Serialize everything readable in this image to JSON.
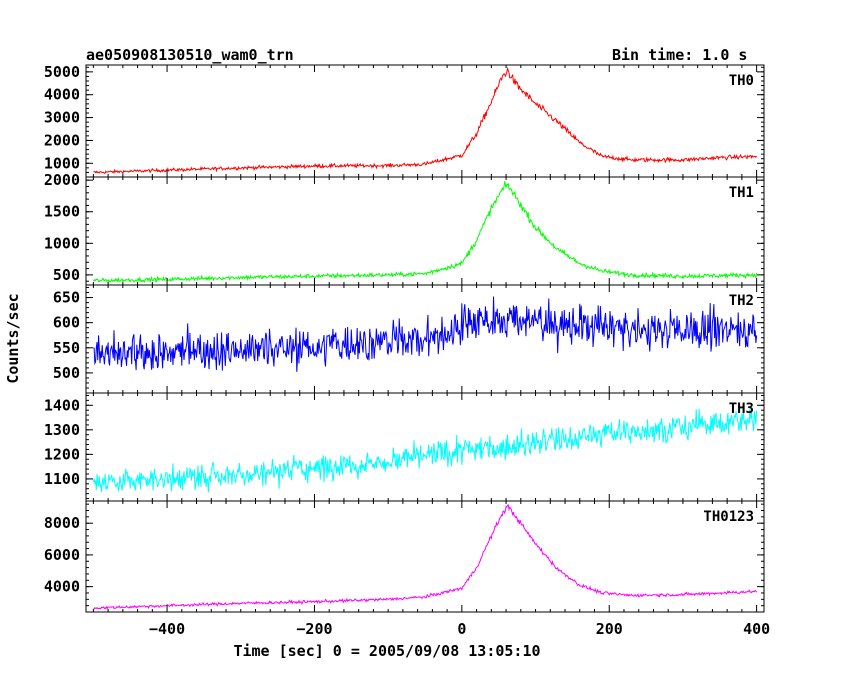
{
  "header": {
    "title": "ae050908130510_wam0_trn",
    "bin_time": "Bin time: 1.0 s"
  },
  "chart_data": {
    "type": "line",
    "xlabel": "Time [sec] 0 = 2005/09/08 13:05:10",
    "ylabel": "Counts/sec",
    "xlim": [
      -510,
      410
    ],
    "x_ticks": [
      -400,
      -200,
      0,
      200,
      400
    ],
    "grid": false,
    "panels": [
      {
        "name": "TH0",
        "color": "#ff0000",
        "ylim": [
          400,
          5300
        ],
        "y_ticks": [
          1000,
          2000,
          3000,
          4000,
          5000
        ],
        "x": [
          -500,
          -400,
          -300,
          -200,
          -100,
          -50,
          0,
          20,
          40,
          55,
          62,
          75,
          100,
          130,
          160,
          190,
          230,
          300,
          350,
          400
        ],
        "values": [
          600,
          700,
          800,
          880,
          900,
          960,
          1350,
          2300,
          3700,
          4800,
          5050,
          4400,
          3600,
          2800,
          1900,
          1300,
          1150,
          1150,
          1250,
          1300
        ],
        "noise": 45
      },
      {
        "name": "TH1",
        "color": "#00ff00",
        "ylim": [
          340,
          2050
        ],
        "y_ticks": [
          500,
          1000,
          1500,
          2000
        ],
        "x": [
          -500,
          -400,
          -300,
          -200,
          -100,
          -50,
          0,
          20,
          40,
          55,
          62,
          75,
          100,
          130,
          160,
          190,
          230,
          300,
          350,
          400
        ],
        "values": [
          410,
          430,
          460,
          480,
          500,
          520,
          680,
          1050,
          1550,
          1850,
          1930,
          1700,
          1250,
          900,
          680,
          560,
          500,
          480,
          490,
          500
        ],
        "noise": 22
      },
      {
        "name": "TH2",
        "color": "#0000ff",
        "ylim": [
          460,
          675
        ],
        "y_ticks": [
          500,
          550,
          600,
          650
        ],
        "x": [
          -500,
          -300,
          -200,
          -100,
          -25,
          0,
          50,
          150,
          250,
          400
        ],
        "values": [
          535,
          548,
          552,
          565,
          572,
          600,
          610,
          595,
          585,
          588
        ],
        "noise": 28
      },
      {
        "name": "TH3",
        "color": "#00ffff",
        "ylim": [
          1010,
          1450
        ],
        "y_ticks": [
          1100,
          1200,
          1300,
          1400
        ],
        "x": [
          -500,
          -300,
          -100,
          0,
          100,
          200,
          300,
          400
        ],
        "values": [
          1085,
          1120,
          1170,
          1215,
          1250,
          1285,
          1315,
          1340
        ],
        "noise": 38
      },
      {
        "name": "TH0123",
        "color": "#ff00ff",
        "ylim": [
          2400,
          9400
        ],
        "y_ticks": [
          4000,
          6000,
          8000
        ],
        "x": [
          -500,
          -400,
          -300,
          -200,
          -100,
          -50,
          0,
          20,
          40,
          55,
          62,
          75,
          100,
          130,
          160,
          190,
          230,
          300,
          350,
          400
        ],
        "values": [
          2650,
          2800,
          2950,
          3050,
          3200,
          3350,
          3900,
          5200,
          7200,
          8600,
          9100,
          8300,
          6700,
          5100,
          4100,
          3600,
          3450,
          3500,
          3600,
          3700
        ],
        "noise": 60
      }
    ]
  }
}
